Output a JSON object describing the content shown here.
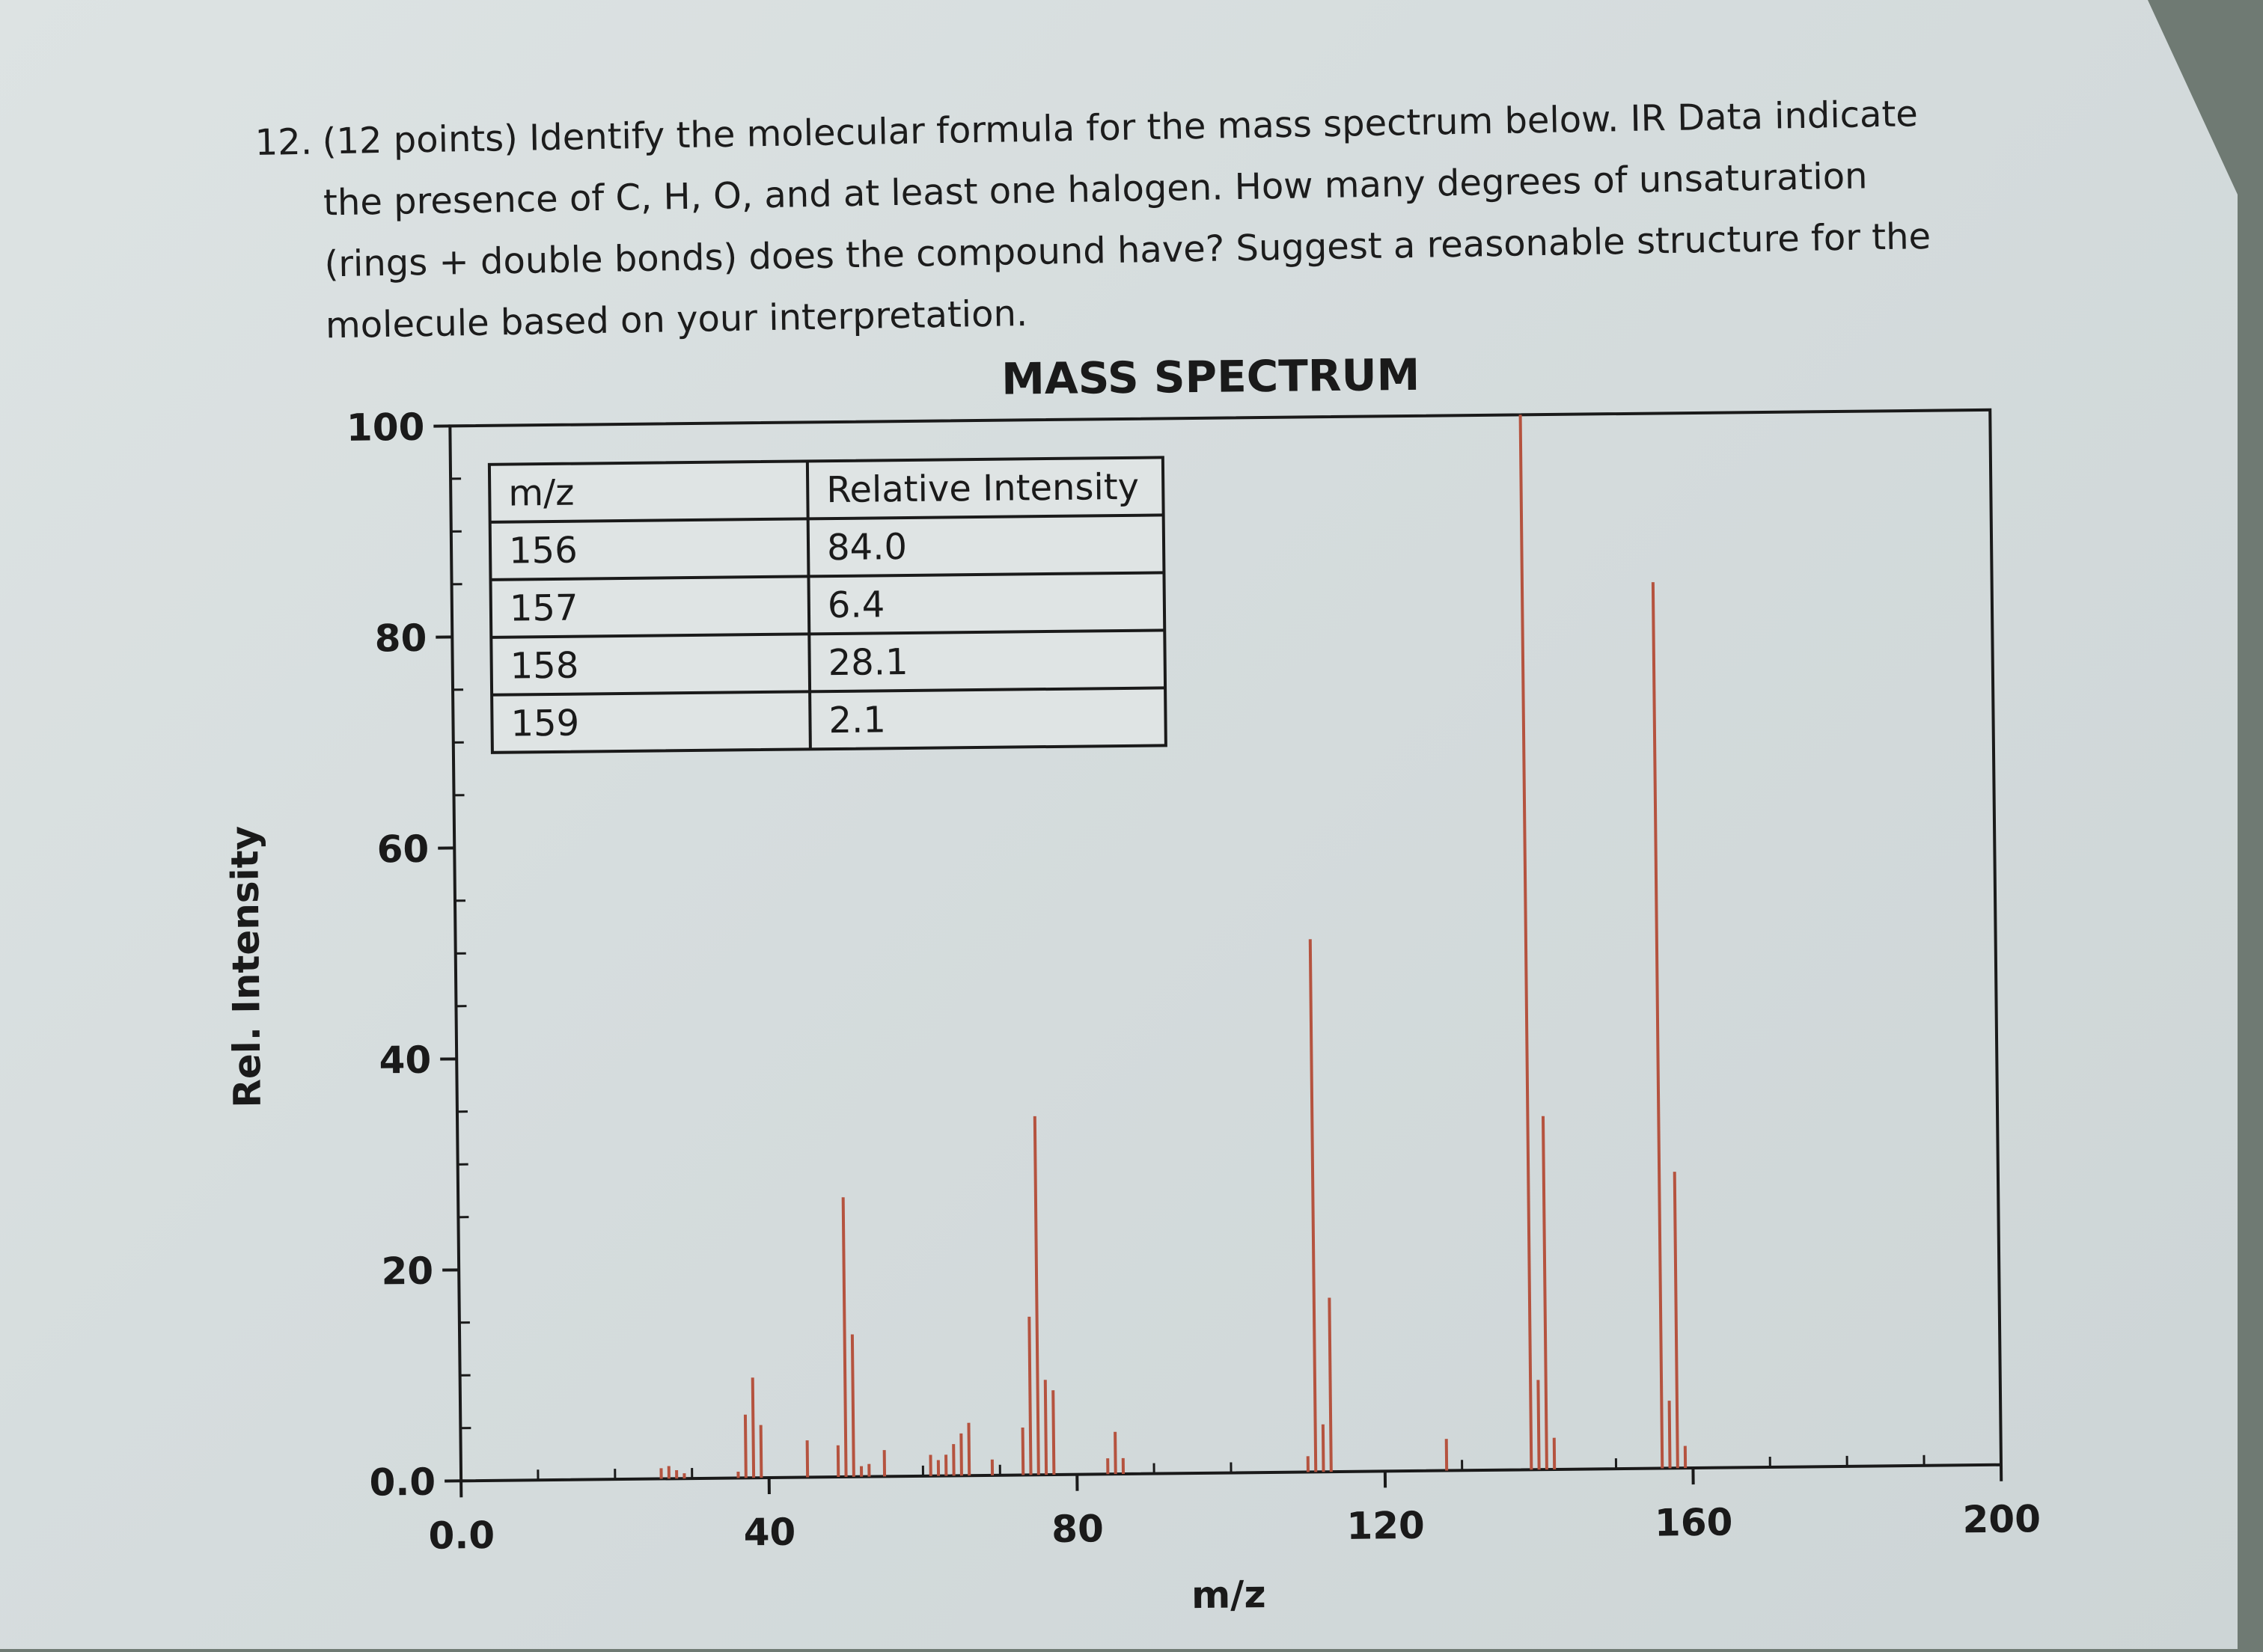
{
  "question": {
    "number": "12.",
    "lines": [
      "(12 points) Identify the molecular formula for the mass spectrum below. IR Data indicate",
      "the presence of C, H, O, and at least one halogen. How many degrees of unsaturation",
      "(rings + double bonds) does the compound have? Suggest a reasonable structure for the",
      "molecule based on your interpretation."
    ]
  },
  "chart_data": {
    "type": "bar",
    "title": "MASS SPECTRUM",
    "xlabel": "m/z",
    "ylabel": "Rel. Intensity",
    "xlim": [
      0,
      200
    ],
    "ylim": [
      0,
      100
    ],
    "x_ticks": [
      {
        "value": 0,
        "label": "0.0"
      },
      {
        "value": 40,
        "label": "40"
      },
      {
        "value": 80,
        "label": "80"
      },
      {
        "value": 120,
        "label": "120"
      },
      {
        "value": 160,
        "label": "160"
      },
      {
        "value": 200,
        "label": "200"
      }
    ],
    "y_ticks": [
      {
        "value": 0,
        "label": "0.0"
      },
      {
        "value": 20,
        "label": "20"
      },
      {
        "value": 40,
        "label": "40"
      },
      {
        "value": 60,
        "label": "60"
      },
      {
        "value": 80,
        "label": "80"
      },
      {
        "value": 100,
        "label": "100"
      }
    ],
    "peaks": [
      {
        "mz": 26,
        "intensity": 1.0
      },
      {
        "mz": 27,
        "intensity": 1.2
      },
      {
        "mz": 28,
        "intensity": 0.8
      },
      {
        "mz": 29,
        "intensity": 0.5
      },
      {
        "mz": 36,
        "intensity": 0.6
      },
      {
        "mz": 37,
        "intensity": 6.0
      },
      {
        "mz": 38,
        "intensity": 9.5
      },
      {
        "mz": 39,
        "intensity": 5.0
      },
      {
        "mz": 45,
        "intensity": 3.5
      },
      {
        "mz": 49,
        "intensity": 3.0
      },
      {
        "mz": 50,
        "intensity": 26.5
      },
      {
        "mz": 51,
        "intensity": 13.5
      },
      {
        "mz": 52,
        "intensity": 1.0
      },
      {
        "mz": 53,
        "intensity": 1.2
      },
      {
        "mz": 55,
        "intensity": 2.5
      },
      {
        "mz": 61,
        "intensity": 2.0
      },
      {
        "mz": 62,
        "intensity": 1.5
      },
      {
        "mz": 63,
        "intensity": 2.0
      },
      {
        "mz": 64,
        "intensity": 3.0
      },
      {
        "mz": 65,
        "intensity": 4.0
      },
      {
        "mz": 66,
        "intensity": 5.0
      },
      {
        "mz": 69,
        "intensity": 1.5
      },
      {
        "mz": 73,
        "intensity": 4.5
      },
      {
        "mz": 74,
        "intensity": 15.0
      },
      {
        "mz": 75,
        "intensity": 34.0
      },
      {
        "mz": 76,
        "intensity": 9.0
      },
      {
        "mz": 77,
        "intensity": 8.0
      },
      {
        "mz": 84,
        "intensity": 1.5
      },
      {
        "mz": 85,
        "intensity": 4.0
      },
      {
        "mz": 86,
        "intensity": 1.5
      },
      {
        "mz": 110,
        "intensity": 1.5
      },
      {
        "mz": 111,
        "intensity": 50.5
      },
      {
        "mz": 112,
        "intensity": 4.5
      },
      {
        "mz": 113,
        "intensity": 16.5
      },
      {
        "mz": 128,
        "intensity": 3.0
      },
      {
        "mz": 139,
        "intensity": 100.0
      },
      {
        "mz": 140,
        "intensity": 8.5
      },
      {
        "mz": 141,
        "intensity": 33.5
      },
      {
        "mz": 142,
        "intensity": 3.0
      },
      {
        "mz": 156,
        "intensity": 84.0
      },
      {
        "mz": 157,
        "intensity": 6.4
      },
      {
        "mz": 158,
        "intensity": 28.1
      },
      {
        "mz": 159,
        "intensity": 2.1
      }
    ],
    "inset_table": {
      "headers": [
        "m/z",
        "Relative Intensity"
      ],
      "rows": [
        [
          "156",
          "84.0"
        ],
        [
          "157",
          "6.4"
        ],
        [
          "158",
          "28.1"
        ],
        [
          "159",
          "2.1"
        ]
      ]
    },
    "colors": {
      "peak": "#b5533f",
      "axis": "#1a1a1a"
    },
    "grid": false
  }
}
